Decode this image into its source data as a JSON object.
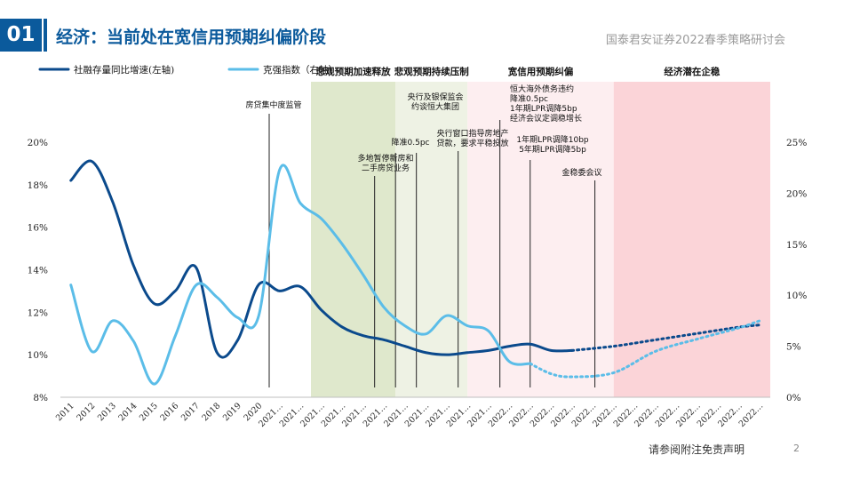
{
  "header": {
    "badge": "01",
    "title": "经济：当前处在宽信用预期纠偏阶段",
    "brand": "国泰君安证券2022春季策略研讨会"
  },
  "footer": {
    "note": "请参阅附注免责声明",
    "page": "2"
  },
  "colors": {
    "brand_blue": "#0b5a9c",
    "tsf_series": "#0b4a8c",
    "pmi_series": "#5bbde8",
    "phase_green_dark": "#dfe8cc",
    "phase_green_light": "#eef2e4",
    "phase_pink_light": "#fdeef0",
    "phase_pink": "#fbd4d8"
  },
  "chart_data": {
    "type": "line",
    "x_labels": [
      "2011",
      "2012",
      "2013",
      "2014",
      "2015",
      "2016",
      "2017",
      "2018",
      "2019",
      "2020",
      "2021…",
      "2021…",
      "2021…",
      "2021…",
      "2021…",
      "2021…",
      "2021…",
      "2021…",
      "2021…",
      "2021…",
      "2021…",
      "2022…",
      "2022…",
      "2022…",
      "2022…",
      "2022…",
      "2022…",
      "2022…",
      "2022…",
      "2022…",
      "2022…",
      "2022…",
      "2022…",
      "2022…"
    ],
    "left_axis": {
      "ticks": [
        "8%",
        "10%",
        "12%",
        "14%",
        "16%",
        "18%",
        "20%"
      ],
      "range": [
        8,
        20
      ]
    },
    "right_axis": {
      "ticks": [
        "0%",
        "5%",
        "10%",
        "15%",
        "20%",
        "25%"
      ],
      "range": [
        0,
        25
      ]
    },
    "series": [
      {
        "name": "社融存量同比增速(左轴)",
        "axis": "left",
        "color": "#0b4a8c",
        "solid_points": [
          [
            0,
            18.2
          ],
          [
            1,
            19.1
          ],
          [
            2,
            17.2
          ],
          [
            3,
            14.2
          ],
          [
            4,
            12.4
          ],
          [
            5,
            13.0
          ],
          [
            6,
            14.1
          ],
          [
            7,
            10.1
          ],
          [
            8,
            10.7
          ],
          [
            9,
            13.3
          ],
          [
            10,
            13.0
          ],
          [
            11,
            13.2
          ],
          [
            12,
            12.1
          ],
          [
            13,
            11.3
          ],
          [
            14,
            10.9
          ],
          [
            15,
            10.7
          ],
          [
            16,
            10.4
          ],
          [
            17,
            10.1
          ],
          [
            18,
            10.0
          ],
          [
            19,
            10.1
          ],
          [
            20,
            10.2
          ],
          [
            21,
            10.4
          ],
          [
            22,
            10.5
          ],
          [
            23,
            10.2
          ],
          [
            24,
            10.2
          ]
        ],
        "projected_points": [
          [
            24,
            10.2
          ],
          [
            26,
            10.4
          ],
          [
            28,
            10.7
          ],
          [
            30,
            11.0
          ],
          [
            32,
            11.3
          ],
          [
            33,
            11.4
          ]
        ]
      },
      {
        "name": "克强指数（右轴）",
        "axis": "right",
        "color": "#5bbde8",
        "solid_points": [
          [
            0,
            11
          ],
          [
            1,
            4.5
          ],
          [
            2,
            7.5
          ],
          [
            3,
            5.5
          ],
          [
            4,
            1.3
          ],
          [
            5,
            6
          ],
          [
            6,
            11
          ],
          [
            7,
            9.8
          ],
          [
            8,
            7.8
          ],
          [
            9,
            8
          ],
          [
            10,
            22.3
          ],
          [
            11,
            19
          ],
          [
            12,
            17.5
          ],
          [
            13,
            15
          ],
          [
            14,
            12
          ],
          [
            15,
            8.8
          ],
          [
            16,
            7
          ],
          [
            17,
            6.2
          ],
          [
            18,
            8
          ],
          [
            19,
            7
          ],
          [
            20,
            6.5
          ],
          [
            21,
            3.5
          ],
          [
            22,
            3.3
          ]
        ],
        "projected_points": [
          [
            22,
            3.3
          ],
          [
            23,
            2.3
          ],
          [
            24,
            2.0
          ],
          [
            26,
            2.4
          ],
          [
            28,
            4.5
          ],
          [
            30,
            5.7
          ],
          [
            32,
            6.8
          ],
          [
            33,
            7.5
          ]
        ]
      }
    ],
    "phases": [
      {
        "label": "悲观预期加速释放",
        "start": 12.0,
        "end": 16.05,
        "color": "#dfe8cc"
      },
      {
        "label": "悲观预期持续压制",
        "start": 16.05,
        "end": 19.5,
        "color": "#eef2e4"
      },
      {
        "label": "宽信用预期纠偏",
        "start": 19.5,
        "end": 26.5,
        "color": "#fdeef0"
      },
      {
        "label": "经济潜在企稳",
        "start": 26.5,
        "end": 34.0,
        "color": "#fbd4d8"
      }
    ],
    "events": [
      {
        "x": 10.0,
        "lines": [
          "房贷集中度监管"
        ]
      },
      {
        "x": 15.05,
        "lines": [
          "多地暂停新房和",
          "二手房贷业务"
        ]
      },
      {
        "x": 16.05,
        "lines": [
          "降准0.5pc"
        ]
      },
      {
        "x": 17.05,
        "lines": [
          "央行及银保监会",
          "约谈恒大集团"
        ]
      },
      {
        "x": 19.05,
        "lines": [
          "央行窗口指导房地产",
          "贷款，要求平稳投放"
        ]
      },
      {
        "x": 21.05,
        "lines": [
          "恒大海外债务违约",
          "降准0.5pc",
          "1年期LPR调降5bp",
          "经济会议定调稳增长"
        ]
      },
      {
        "x": 22.5,
        "lines": [
          "1年期LPR调降10bp",
          "5年期LPR调降5bp"
        ]
      },
      {
        "x": 25.6,
        "lines": [
          "金稳委会议"
        ]
      }
    ]
  }
}
